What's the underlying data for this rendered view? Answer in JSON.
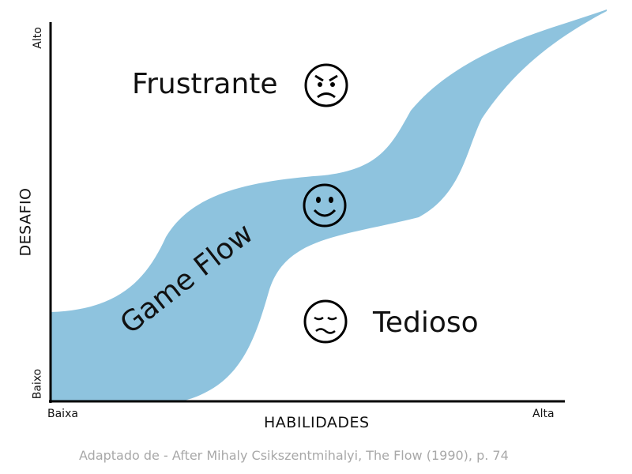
{
  "y_axis": {
    "title": "DESAFIO",
    "low_label": "Baixo",
    "high_label": "Alto"
  },
  "x_axis": {
    "title": "HABILIDADES",
    "low_label": "Baixa",
    "high_label": "Alta"
  },
  "zones": {
    "top": {
      "label": "Frustrante",
      "icon": "angry-face-icon"
    },
    "middle": {
      "label": "Game Flow",
      "icon": "smiling-face-icon"
    },
    "bottom": {
      "label": "Tedioso",
      "icon": "bored-face-icon"
    }
  },
  "source_text": "Adaptado de - After Mihaly Csikszentmihalyi, The Flow (1990), p. 74",
  "colors": {
    "flow_band": "#8ec3de",
    "axis": "#000000",
    "source": "#a8a8a8"
  }
}
